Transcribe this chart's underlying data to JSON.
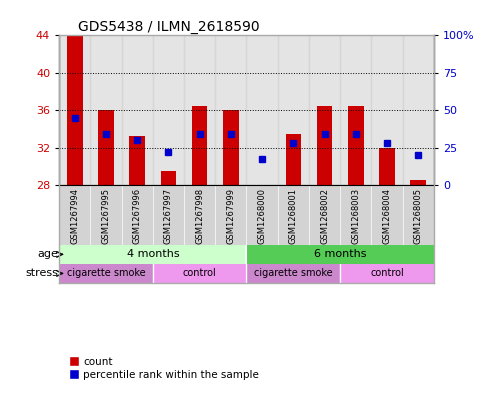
{
  "title": "GDS5438 / ILMN_2618590",
  "samples": [
    "GSM1267994",
    "GSM1267995",
    "GSM1267996",
    "GSM1267997",
    "GSM1267998",
    "GSM1267999",
    "GSM1268000",
    "GSM1268001",
    "GSM1268002",
    "GSM1268003",
    "GSM1268004",
    "GSM1268005"
  ],
  "red_values": [
    44.0,
    36.0,
    33.2,
    29.5,
    36.5,
    36.0,
    27.9,
    33.5,
    36.5,
    36.5,
    32.0,
    28.5
  ],
  "blue_values": [
    35.2,
    33.5,
    32.8,
    31.5,
    33.5,
    33.5,
    30.8,
    32.5,
    33.5,
    33.5,
    32.5,
    31.2
  ],
  "ylim_left": [
    28,
    44
  ],
  "ylim_right": [
    0,
    100
  ],
  "yticks_left": [
    28,
    32,
    36,
    40,
    44
  ],
  "yticks_right": [
    0,
    25,
    50,
    75,
    100
  ],
  "bar_bottom": 28,
  "bar_color": "#cc0000",
  "blue_color": "#0000cc",
  "bg_color": "#ffffff",
  "tick_label_color_left": "#cc0000",
  "tick_label_color_right": "#0000cc",
  "col_bg_color": "#d3d3d3",
  "col_bg_alpha": 0.6,
  "age_groups": [
    {
      "label": "4 months",
      "start": 0,
      "end": 5,
      "color": "#ccffcc"
    },
    {
      "label": "6 months",
      "start": 6,
      "end": 11,
      "color": "#55cc55"
    }
  ],
  "stress_groups": [
    {
      "label": "cigarette smoke",
      "start": 0,
      "end": 2,
      "color": "#cc88cc"
    },
    {
      "label": "control",
      "start": 3,
      "end": 5,
      "color": "#ee99ee"
    },
    {
      "label": "cigarette smoke",
      "start": 6,
      "end": 8,
      "color": "#cc88cc"
    },
    {
      "label": "control",
      "start": 9,
      "end": 11,
      "color": "#ee99ee"
    }
  ],
  "legend_count_color": "#cc0000",
  "legend_pct_color": "#0000cc",
  "border_color": "#aaaaaa"
}
